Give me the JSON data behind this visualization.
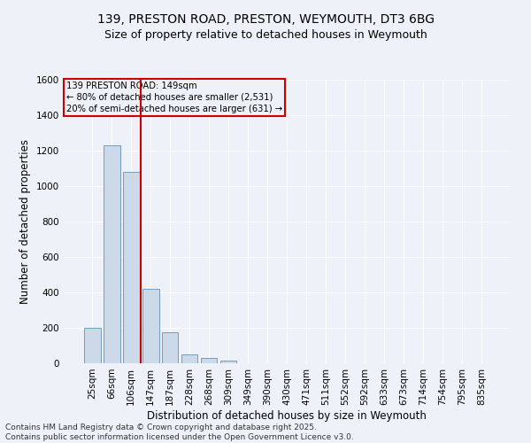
{
  "title1": "139, PRESTON ROAD, PRESTON, WEYMOUTH, DT3 6BG",
  "title2": "Size of property relative to detached houses in Weymouth",
  "xlabel": "Distribution of detached houses by size in Weymouth",
  "ylabel": "Number of detached properties",
  "annotation_line1": "139 PRESTON ROAD: 149sqm",
  "annotation_line2": "← 80% of detached houses are smaller (2,531)",
  "annotation_line3": "20% of semi-detached houses are larger (631) →",
  "footer1": "Contains HM Land Registry data © Crown copyright and database right 2025.",
  "footer2": "Contains public sector information licensed under the Open Government Licence v3.0.",
  "categories": [
    "25sqm",
    "66sqm",
    "106sqm",
    "147sqm",
    "187sqm",
    "228sqm",
    "268sqm",
    "309sqm",
    "349sqm",
    "390sqm",
    "430sqm",
    "471sqm",
    "511sqm",
    "552sqm",
    "592sqm",
    "633sqm",
    "673sqm",
    "714sqm",
    "754sqm",
    "795sqm",
    "835sqm"
  ],
  "values": [
    200,
    1230,
    1080,
    420,
    175,
    50,
    30,
    15,
    0,
    0,
    0,
    0,
    0,
    0,
    0,
    0,
    0,
    0,
    0,
    0,
    0
  ],
  "bar_color": "#ccd9e8",
  "bar_edge_color": "#6090b8",
  "vline_color": "#cc0000",
  "property_bin_index": 3,
  "ylim": [
    0,
    1600
  ],
  "yticks": [
    0,
    200,
    400,
    600,
    800,
    1000,
    1200,
    1400,
    1600
  ],
  "bg_color": "#eef2f8",
  "grid_color": "#ffffff",
  "annotation_box_color": "#cc0000",
  "title_fontsize": 10,
  "subtitle_fontsize": 9,
  "axis_label_fontsize": 8.5,
  "tick_fontsize": 7.5,
  "footer_fontsize": 6.5
}
